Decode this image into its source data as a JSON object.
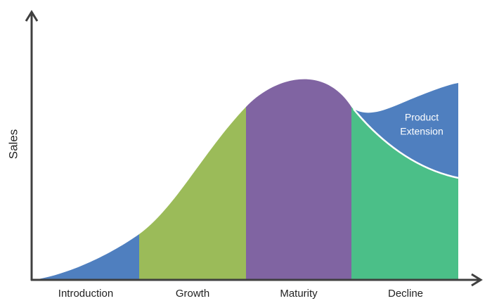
{
  "axis": {
    "y_label": "Sales"
  },
  "stages": [
    {
      "label": "Introduction"
    },
    {
      "label": "Growth"
    },
    {
      "label": "Maturity"
    },
    {
      "label": "Decline"
    }
  ],
  "extension": {
    "lines": [
      "Product",
      "Extension"
    ]
  }
}
